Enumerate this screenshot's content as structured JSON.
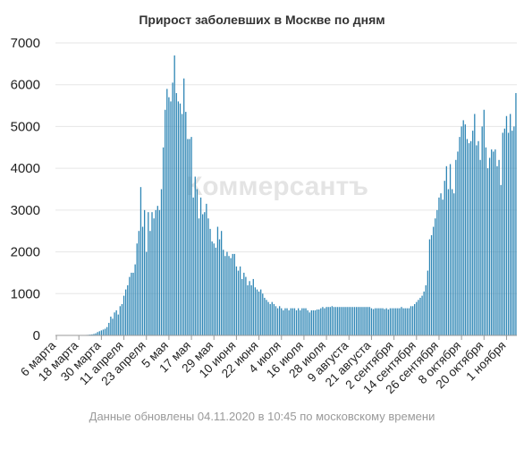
{
  "chart_data": {
    "type": "bar",
    "title": "Прирост заболевших в Москве по дням",
    "xlabel": "",
    "ylabel": "",
    "ylim": [
      0,
      7000
    ],
    "yticks": [
      0,
      1000,
      2000,
      3000,
      4000,
      5000,
      6000,
      7000
    ],
    "grid": true,
    "legend": "none",
    "bar_color": "#2e86b5",
    "tick_labels": [
      {
        "label": "6 марта",
        "day": 0
      },
      {
        "label": "18 марта",
        "day": 12
      },
      {
        "label": "30 марта",
        "day": 24
      },
      {
        "label": "11 апреля",
        "day": 36
      },
      {
        "label": "23 апреля",
        "day": 48
      },
      {
        "label": "5 мая",
        "day": 60
      },
      {
        "label": "17 мая",
        "day": 72
      },
      {
        "label": "29 мая",
        "day": 84
      },
      {
        "label": "10 июня",
        "day": 96
      },
      {
        "label": "22 июня",
        "day": 108
      },
      {
        "label": "4 июля",
        "day": 120
      },
      {
        "label": "16 июля",
        "day": 132
      },
      {
        "label": "28 июля",
        "day": 144
      },
      {
        "label": "9 августа",
        "day": 156
      },
      {
        "label": "21 августа",
        "day": 168
      },
      {
        "label": "2 сентября",
        "day": 180
      },
      {
        "label": "14 сентября",
        "day": 192
      },
      {
        "label": "26 сентября",
        "day": 204
      },
      {
        "label": "8 октября",
        "day": 216
      },
      {
        "label": "20 октября",
        "day": 228
      },
      {
        "label": "1 ноября",
        "day": 240
      }
    ],
    "values": [
      1,
      1,
      1,
      1,
      1,
      1,
      1,
      1,
      1,
      1,
      1,
      2,
      3,
      5,
      5,
      8,
      12,
      15,
      20,
      25,
      35,
      50,
      80,
      100,
      120,
      140,
      160,
      200,
      300,
      450,
      400,
      550,
      600,
      500,
      700,
      750,
      950,
      1100,
      1200,
      1400,
      1500,
      1500,
      1700,
      2200,
      2500,
      3550,
      2600,
      3000,
      2000,
      2950,
      2500,
      2950,
      2800,
      3000,
      3100,
      3000,
      3500,
      4500,
      5400,
      5900,
      5700,
      5600,
      6050,
      6700,
      5800,
      5600,
      5550,
      5300,
      6150,
      5350,
      4700,
      4700,
      4750,
      3300,
      3800,
      3500,
      2800,
      3300,
      2900,
      2950,
      3150,
      2800,
      2550,
      2250,
      2200,
      2100,
      2600,
      2300,
      2500,
      2050,
      1900,
      2000,
      1900,
      1850,
      1950,
      1950,
      1650,
      1550,
      1650,
      1350,
      1500,
      1400,
      1200,
      1300,
      1200,
      1350,
      1150,
      1100,
      1050,
      1100,
      1000,
      900,
      850,
      800,
      750,
      800,
      750,
      700,
      650,
      700,
      650,
      600,
      650,
      650,
      600,
      650,
      650,
      650,
      600,
      650,
      600,
      650,
      650,
      650,
      600,
      550,
      600,
      600,
      600,
      620,
      620,
      650,
      680,
      650,
      680,
      680,
      680,
      700,
      680,
      680,
      680,
      680,
      680,
      680,
      680,
      680,
      680,
      680,
      680,
      680,
      680,
      680,
      680,
      680,
      680,
      680,
      680,
      680,
      650,
      630,
      650,
      650,
      650,
      650,
      650,
      630,
      650,
      620,
      650,
      650,
      650,
      650,
      650,
      650,
      680,
      650,
      650,
      650,
      650,
      700,
      700,
      750,
      800,
      850,
      900,
      950,
      1050,
      1200,
      1550,
      2300,
      2400,
      2600,
      2800,
      3000,
      3300,
      3400,
      3250,
      3700,
      4050,
      3500,
      4100,
      3500,
      3400,
      4200,
      4400,
      4750,
      5000,
      5150,
      5050,
      4700,
      4600,
      4650,
      4900,
      5300,
      4550,
      4650,
      4200,
      5000,
      5400,
      4500,
      4000,
      4250,
      4450,
      4400,
      4450,
      4050,
      4200,
      3600,
      4850,
      4950,
      5250,
      4850,
      5300,
      4900,
      5000,
      5800
    ]
  },
  "watermark": "Коммерсантъ",
  "footnote": "Данные обновлены 04.11.2020 в 10:45 по московскому времени"
}
